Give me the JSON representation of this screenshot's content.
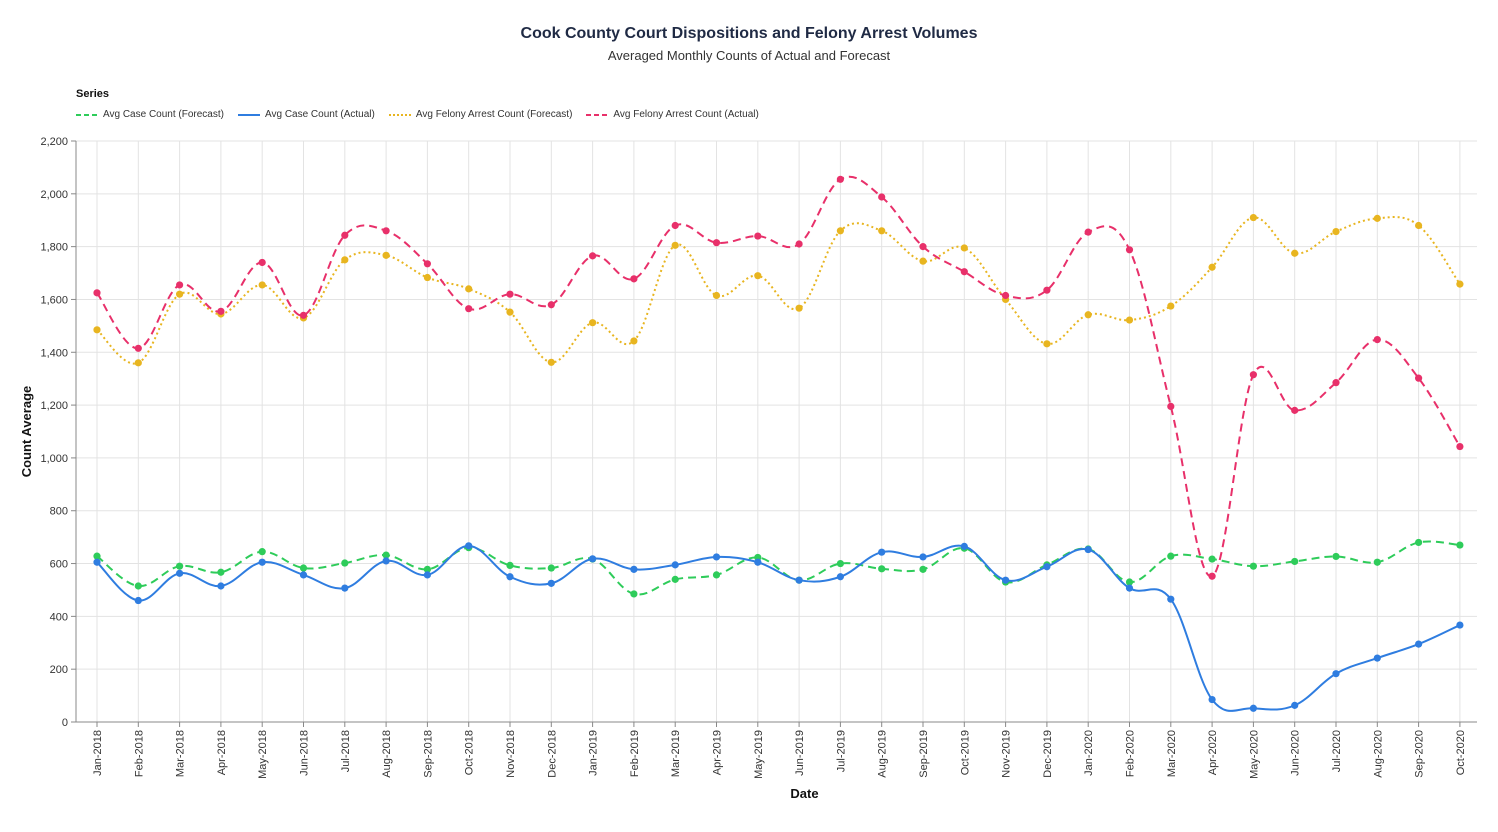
{
  "chart_data": {
    "type": "line",
    "title": "Cook County Court Dispositions and Felony Arrest Volumes",
    "subtitle": "Averaged Monthly Counts of Actual and Forecast",
    "xlabel": "Date",
    "ylabel": "Count Average",
    "ylim": [
      0,
      2200
    ],
    "yticks": [
      0,
      200,
      400,
      600,
      800,
      1000,
      1200,
      1400,
      1600,
      1800,
      2000,
      2200
    ],
    "ytick_labels": [
      "0",
      "200",
      "400",
      "600",
      "800",
      "1,000",
      "1,200",
      "1,400",
      "1,600",
      "1,800",
      "2,000",
      "2,200"
    ],
    "grid": true,
    "legend_title": "Series",
    "legend_position": "top-left",
    "categories": [
      "Jan-2018",
      "Feb-2018",
      "Mar-2018",
      "Apr-2018",
      "May-2018",
      "Jun-2018",
      "Jul-2018",
      "Aug-2018",
      "Sep-2018",
      "Oct-2018",
      "Nov-2018",
      "Dec-2018",
      "Jan-2019",
      "Feb-2019",
      "Mar-2019",
      "Apr-2019",
      "May-2019",
      "Jun-2019",
      "Jul-2019",
      "Aug-2019",
      "Sep-2019",
      "Oct-2019",
      "Nov-2019",
      "Dec-2019",
      "Jan-2020",
      "Feb-2020",
      "Mar-2020",
      "Apr-2020",
      "May-2020",
      "Jun-2020",
      "Jul-2020",
      "Aug-2020",
      "Sep-2020",
      "Oct-2020"
    ],
    "series": [
      {
        "name": "Avg Case Count (Forecast)",
        "color": "#2ecc5a",
        "dash": "dashed",
        "values": [
          628,
          515,
          590,
          567,
          645,
          583,
          602,
          632,
          578,
          660,
          593,
          583,
          617,
          485,
          540,
          557,
          623,
          537,
          600,
          580,
          578,
          658,
          530,
          595,
          655,
          530,
          628,
          617,
          590,
          608,
          627,
          605,
          680,
          670
        ]
      },
      {
        "name": "Avg Case Count (Actual)",
        "color": "#2f7de0",
        "dash": "solid",
        "values": [
          605,
          460,
          563,
          515,
          605,
          557,
          507,
          610,
          557,
          667,
          550,
          525,
          618,
          578,
          595,
          625,
          605,
          537,
          550,
          643,
          625,
          665,
          537,
          588,
          653,
          507,
          465,
          85,
          52,
          63,
          183,
          242,
          295,
          367
        ]
      },
      {
        "name": "Avg Felony Arrest Count (Forecast)",
        "color": "#e8b520",
        "dash": "dotted",
        "values": [
          1485,
          1360,
          1620,
          1545,
          1655,
          1530,
          1750,
          1767,
          1683,
          1640,
          1552,
          1362,
          1512,
          1443,
          1805,
          1615,
          1690,
          1567,
          1860,
          1860,
          1745,
          1795,
          1600,
          1432,
          1542,
          1522,
          1575,
          1722,
          1910,
          1775,
          1857,
          1907,
          1880,
          1658
        ]
      },
      {
        "name": "Avg Felony Arrest Count (Actual)",
        "color": "#e8306a",
        "dash": "dashed",
        "values": [
          1625,
          1415,
          1655,
          1555,
          1740,
          1540,
          1843,
          1860,
          1735,
          1565,
          1620,
          1580,
          1765,
          1678,
          1880,
          1815,
          1840,
          1810,
          2055,
          1988,
          1800,
          1705,
          1615,
          1635,
          1855,
          1788,
          1195,
          552,
          1315,
          1180,
          1285,
          1448,
          1302,
          1043
        ]
      }
    ]
  }
}
